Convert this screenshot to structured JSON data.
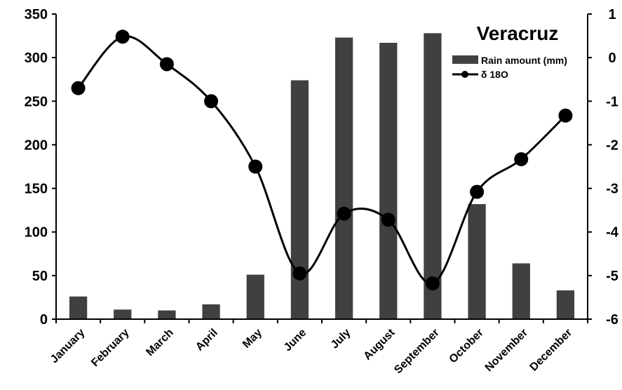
{
  "chart_data": {
    "type": "bar",
    "title": "Veracruz",
    "categories": [
      "January",
      "February",
      "March",
      "April",
      "May",
      "June",
      "July",
      "August",
      "September",
      "October",
      "November",
      "December"
    ],
    "series": [
      {
        "name": "Rain amount (mm)",
        "type": "bar",
        "axis": "left",
        "color": "#404040",
        "values": [
          26,
          11,
          10,
          17,
          51,
          274,
          323,
          317,
          328,
          132,
          64,
          33
        ]
      },
      {
        "name": "δ 18O",
        "type": "line",
        "axis": "right",
        "color": "#000000",
        "values": [
          -0.7,
          0.48,
          -0.15,
          -1.0,
          -2.5,
          -4.95,
          -3.58,
          -3.72,
          -5.18,
          -3.08,
          -2.33,
          -1.33
        ]
      }
    ],
    "y_left": {
      "min": 0,
      "max": 350,
      "ticks": [
        0,
        50,
        100,
        150,
        200,
        250,
        300,
        350
      ]
    },
    "y_right": {
      "min": -6,
      "max": 1,
      "ticks": [
        -6,
        -5,
        -4,
        -3,
        -2,
        -1,
        0,
        1
      ]
    },
    "grid": false,
    "legend_position": "top-right"
  }
}
